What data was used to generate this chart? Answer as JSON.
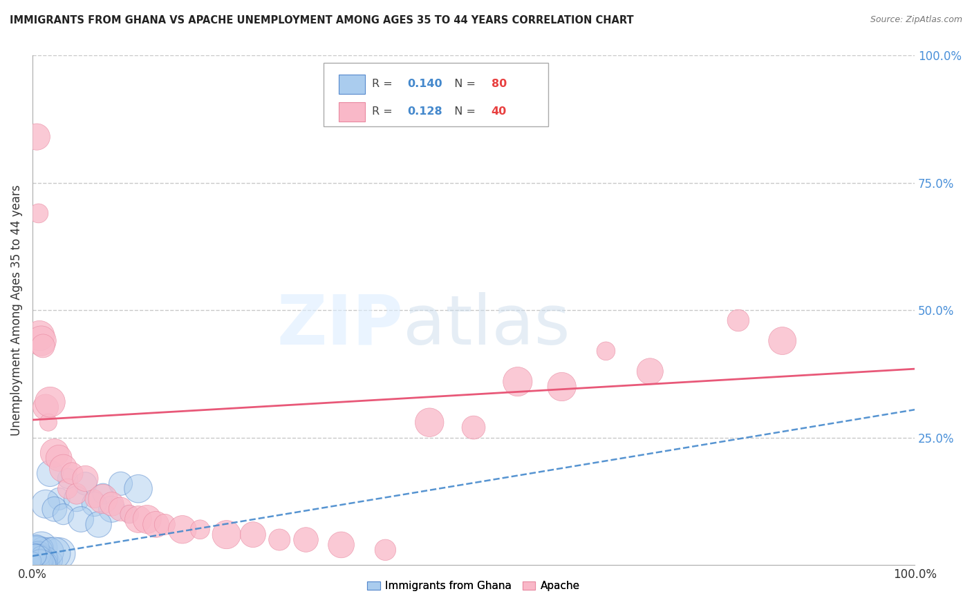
{
  "title": "IMMIGRANTS FROM GHANA VS APACHE UNEMPLOYMENT AMONG AGES 35 TO 44 YEARS CORRELATION CHART",
  "source": "Source: ZipAtlas.com",
  "ylabel": "Unemployment Among Ages 35 to 44 years",
  "legend_labels": [
    "Immigrants from Ghana",
    "Apache"
  ],
  "watermark_zip": "ZIP",
  "watermark_atlas": "atlas",
  "ghana_fill_color": "#aaccee",
  "ghana_edge_color": "#5588cc",
  "apache_fill_color": "#f9b8c8",
  "apache_edge_color": "#e888a0",
  "ghana_trend_color": "#4488cc",
  "apache_trend_color": "#e85878",
  "background": "#ffffff",
  "grid_color": "#cccccc",
  "xlim": [
    0,
    1
  ],
  "ylim": [
    0,
    1
  ],
  "ghana_R": 0.14,
  "ghana_N": 80,
  "apache_R": 0.128,
  "apache_N": 40,
  "apache_x": [
    0.005,
    0.007,
    0.008,
    0.01,
    0.012,
    0.015,
    0.018,
    0.02,
    0.025,
    0.03,
    0.035,
    0.04,
    0.045,
    0.05,
    0.06,
    0.07,
    0.08,
    0.09,
    0.1,
    0.11,
    0.12,
    0.13,
    0.14,
    0.15,
    0.17,
    0.19,
    0.22,
    0.25,
    0.28,
    0.31,
    0.35,
    0.4,
    0.45,
    0.5,
    0.55,
    0.6,
    0.65,
    0.7,
    0.8,
    0.85
  ],
  "apache_y": [
    0.84,
    0.69,
    0.45,
    0.44,
    0.43,
    0.31,
    0.28,
    0.32,
    0.22,
    0.21,
    0.19,
    0.15,
    0.18,
    0.14,
    0.17,
    0.13,
    0.13,
    0.12,
    0.11,
    0.1,
    0.09,
    0.09,
    0.08,
    0.08,
    0.07,
    0.07,
    0.06,
    0.06,
    0.05,
    0.05,
    0.04,
    0.03,
    0.28,
    0.27,
    0.36,
    0.35,
    0.42,
    0.38,
    0.48,
    0.44
  ],
  "apache_trend_x0": 0.0,
  "apache_trend_y0": 0.285,
  "apache_trend_x1": 1.0,
  "apache_trend_y1": 0.385,
  "ghana_trend_x0": 0.0,
  "ghana_trend_y0": 0.018,
  "ghana_trend_x1": 1.0,
  "ghana_trend_y1": 0.305
}
